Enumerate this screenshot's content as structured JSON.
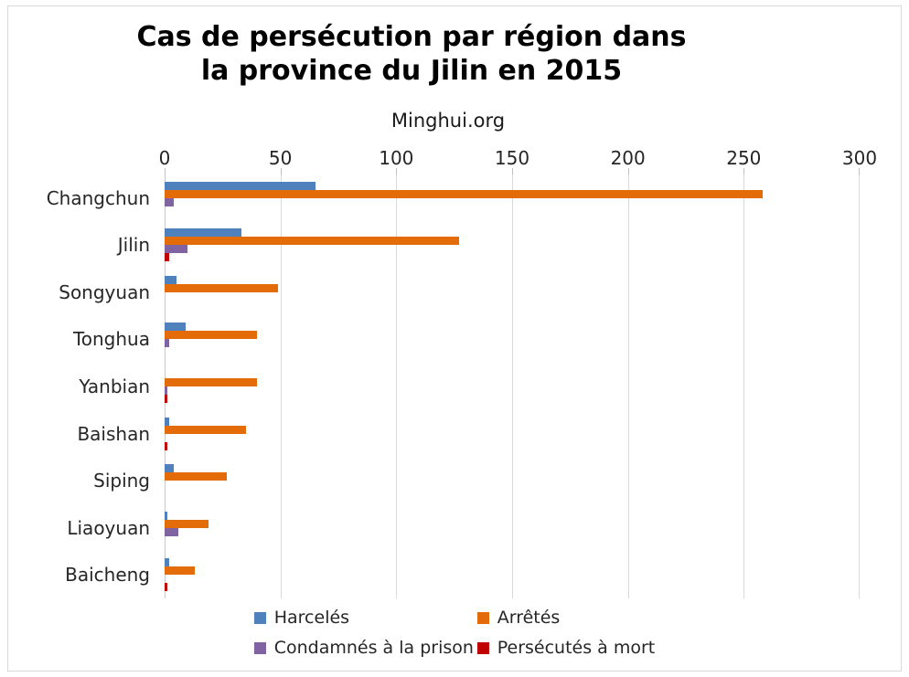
{
  "title": {
    "line1": "Cas de persécution par région dans",
    "line2": "la province du Jilin en 2015"
  },
  "subtitle": "Minghui.org",
  "chart_data": {
    "type": "bar",
    "orientation": "horizontal",
    "title": "Cas de persécution par région dans la province du Jilin en 2015",
    "subtitle": "Minghui.org",
    "categories": [
      "Changchun",
      "Jilin",
      "Songyuan",
      "Tonghua",
      "Yanbian",
      "Baishan",
      "Siping",
      "Liaoyuan",
      "Baicheng"
    ],
    "series": [
      {
        "name": "Harcelés",
        "color": "#4f81bd",
        "values": [
          65,
          33,
          5,
          9,
          0,
          2,
          4,
          1,
          2
        ]
      },
      {
        "name": "Arrêtés",
        "color": "#e36c09",
        "values": [
          258,
          127,
          49,
          40,
          40,
          35,
          27,
          19,
          13
        ]
      },
      {
        "name": "Condamnés à la prison",
        "color": "#8064a2",
        "values": [
          4,
          10,
          0,
          2,
          1,
          0,
          0,
          6,
          0
        ]
      },
      {
        "name": "Persécutés à mort",
        "color": "#c00000",
        "values": [
          0,
          2,
          0,
          0,
          1,
          1,
          0,
          0,
          1
        ]
      }
    ],
    "xlim": [
      0,
      300
    ],
    "xticks": [
      0,
      50,
      100,
      150,
      200,
      250,
      300
    ],
    "value_axis_position": "top",
    "grid": "vertical",
    "legend_position": "bottom"
  },
  "colors": {
    "gridline": "#d9d9d9",
    "axis_line": "#c9c9c9",
    "tick": "#bfbfbf",
    "text": "#262626",
    "frame_border": "#d9d9d9"
  }
}
